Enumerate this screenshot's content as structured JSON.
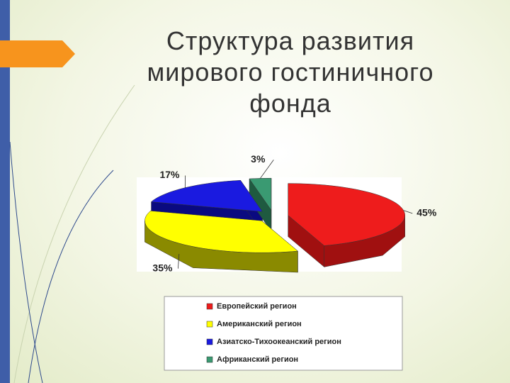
{
  "chart_data": {
    "type": "pie3d",
    "title": "Структура развития мирового гостиничного фонда",
    "categories": [
      "Европейский регион",
      "Американский регион",
      "Азиатско-Тихоокеанский регион",
      "Африканский регион"
    ],
    "values": [
      45,
      35,
      17,
      3
    ],
    "value_labels": [
      "45%",
      "35%",
      "17%",
      "3%"
    ],
    "colors": [
      "#ee1c1c",
      "#ffff00",
      "#1a1ae0",
      "#3a9a72"
    ],
    "side_colors": [
      "#a01010",
      "#8a8a00",
      "#0a0a80",
      "#1f5a40"
    ],
    "legend": "bottom"
  }
}
